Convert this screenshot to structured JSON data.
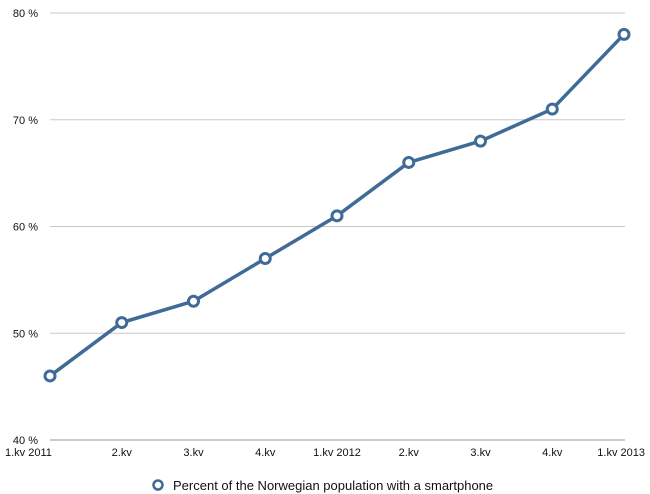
{
  "chart_data": {
    "type": "line",
    "categories": [
      "1.kv 2011",
      "2.kv",
      "3.kv",
      "4.kv",
      "1.kv 2012",
      "2.kv",
      "3.kv",
      "4.kv",
      "1.kv 2013"
    ],
    "series": [
      {
        "name": "Percent of the Norwegian population with a smartphone",
        "values": [
          46,
          51,
          53,
          57,
          61,
          66,
          68,
          71,
          78
        ],
        "color": "#3f6b96"
      }
    ],
    "y_ticks": [
      "40 %",
      "50 %",
      "60 %",
      "70 %",
      "80 %"
    ],
    "ylim": [
      40,
      80
    ],
    "grid": true,
    "legend_position": "bottom-center"
  }
}
